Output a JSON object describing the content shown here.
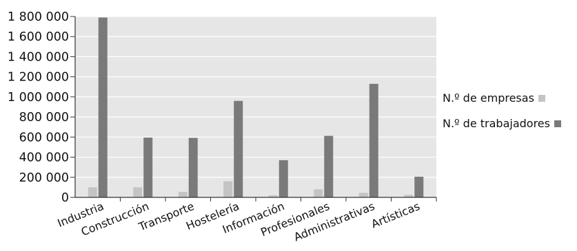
{
  "chart_data": {
    "type": "bar",
    "categories": [
      "Industria",
      "Construcción",
      "Transporte",
      "Hostelería",
      "Información",
      "Profesionales",
      "Administrativas",
      "Artísticas"
    ],
    "series": [
      {
        "name": "N.º de empresas",
        "color": "#c4c4c4",
        "values": [
          100000,
          100000,
          55000,
          160000,
          20000,
          80000,
          45000,
          25000
        ]
      },
      {
        "name": "N.º de trabajadores",
        "color": "#7a7a7a",
        "values": [
          1790000,
          595000,
          592000,
          960000,
          370000,
          612000,
          1130000,
          205000
        ]
      }
    ],
    "y_ticks": [
      "0",
      "200 000",
      "400 000",
      "600 000",
      "800 000",
      "1 000 000",
      "1 200 000",
      "1 400 000",
      "1 600 000",
      "1 800 000"
    ],
    "ylim": [
      0,
      1800000
    ],
    "grid": true,
    "legend_position": "right",
    "plot_background": "#e6e6e6"
  }
}
